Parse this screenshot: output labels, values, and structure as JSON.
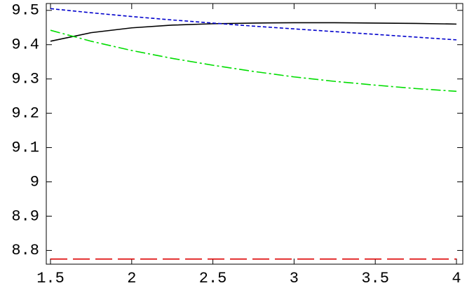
{
  "chart_data": {
    "type": "line",
    "x": [
      1.5,
      1.75,
      2,
      2.25,
      2.5,
      2.75,
      3,
      3.25,
      3.5,
      3.75,
      4
    ],
    "series": [
      {
        "color": "#000000",
        "dash": "solid",
        "values": [
          9.41,
          9.435,
          9.449,
          9.457,
          9.461,
          9.463,
          9.464,
          9.464,
          9.463,
          9.462,
          9.46
        ]
      },
      {
        "color": "#0000cc",
        "dash": "short",
        "values": [
          9.505,
          9.493,
          9.482,
          9.472,
          9.463,
          9.454,
          9.446,
          9.438,
          9.43,
          9.422,
          9.414
        ]
      },
      {
        "color": "#00dd00",
        "dash": "dashdot",
        "values": [
          9.442,
          9.41,
          9.383,
          9.36,
          9.34,
          9.322,
          9.306,
          9.293,
          9.282,
          9.272,
          9.264
        ]
      },
      {
        "color": "#dd0000",
        "dash": "long",
        "values": [
          8.775,
          8.775,
          8.775,
          8.775,
          8.775,
          8.775,
          8.775,
          8.775,
          8.775,
          8.775,
          8.775
        ]
      }
    ],
    "xlim": [
      1.474,
      4.039
    ],
    "ylim": [
      8.76,
      9.52
    ],
    "xticks": [
      1.5,
      2,
      2.5,
      3,
      3.5,
      4
    ],
    "yticks": [
      8.8,
      8.9,
      9,
      9.1,
      9.2,
      9.3,
      9.4,
      9.5
    ],
    "grid": false
  }
}
